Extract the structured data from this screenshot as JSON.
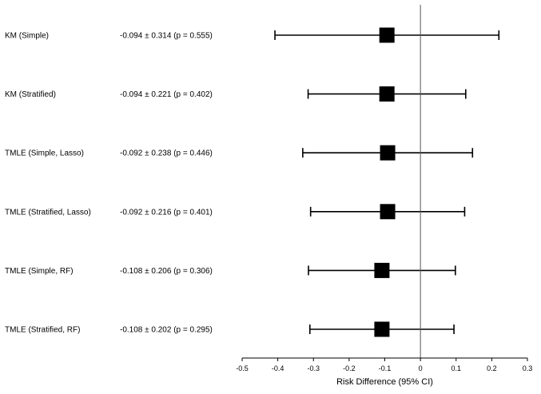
{
  "chart_data": {
    "type": "forest",
    "title": "",
    "xlabel": "Risk Difference (95% CI)",
    "xlim": [
      -0.5,
      0.3
    ],
    "xticks": [
      "-0.5",
      "-0.4",
      "-0.3",
      "-0.2",
      "-0.1",
      "0",
      "0.1",
      "0.2",
      "0.3"
    ],
    "reference_line": 0,
    "grid": false,
    "marker": "square",
    "color": "#000000",
    "rows": [
      {
        "label": "KM (Simple)",
        "stat": "-0.094 ± 0.314 (p = 0.555)",
        "estimate": -0.094,
        "ci_half_width": 0.314
      },
      {
        "label": "KM (Stratified)",
        "stat": "-0.094 ± 0.221 (p = 0.402)",
        "estimate": -0.094,
        "ci_half_width": 0.221
      },
      {
        "label": "TMLE (Simple, Lasso)",
        "stat": "-0.092 ± 0.238 (p = 0.446)",
        "estimate": -0.092,
        "ci_half_width": 0.238
      },
      {
        "label": "TMLE (Stratified, Lasso)",
        "stat": "-0.092 ± 0.216 (p = 0.401)",
        "estimate": -0.092,
        "ci_half_width": 0.216
      },
      {
        "label": "TMLE (Simple, RF)",
        "stat": "-0.108 ± 0.206 (p = 0.306)",
        "estimate": -0.108,
        "ci_half_width": 0.206
      },
      {
        "label": "TMLE (Stratified, RF)",
        "stat": "-0.108 ± 0.202 (p = 0.295)",
        "estimate": -0.108,
        "ci_half_width": 0.202
      }
    ]
  }
}
